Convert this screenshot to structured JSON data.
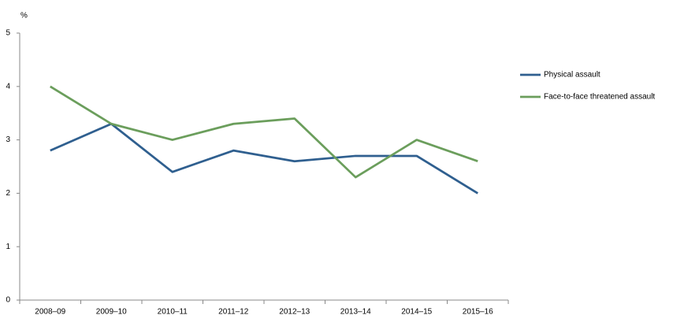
{
  "chart_data": {
    "type": "line",
    "y_label": "%",
    "categories": [
      "2008–09",
      "2009–10",
      "2010–11",
      "2011–12",
      "2012–13",
      "2013–14",
      "2014–15",
      "2015–16"
    ],
    "series": [
      {
        "name": "Physical assault",
        "color": "#2f5f8f",
        "values": [
          2.8,
          3.3,
          2.4,
          2.8,
          2.6,
          2.7,
          2.7,
          2.0
        ]
      },
      {
        "name": "Face-to-face threatened assault",
        "color": "#6b9e5c",
        "values": [
          4.0,
          3.3,
          3.0,
          3.3,
          3.4,
          2.3,
          3.0,
          2.6
        ]
      }
    ],
    "ylim": [
      0,
      5
    ],
    "yticks": [
      0,
      1,
      2,
      3,
      4,
      5
    ],
    "grid": false,
    "legend": "right"
  }
}
